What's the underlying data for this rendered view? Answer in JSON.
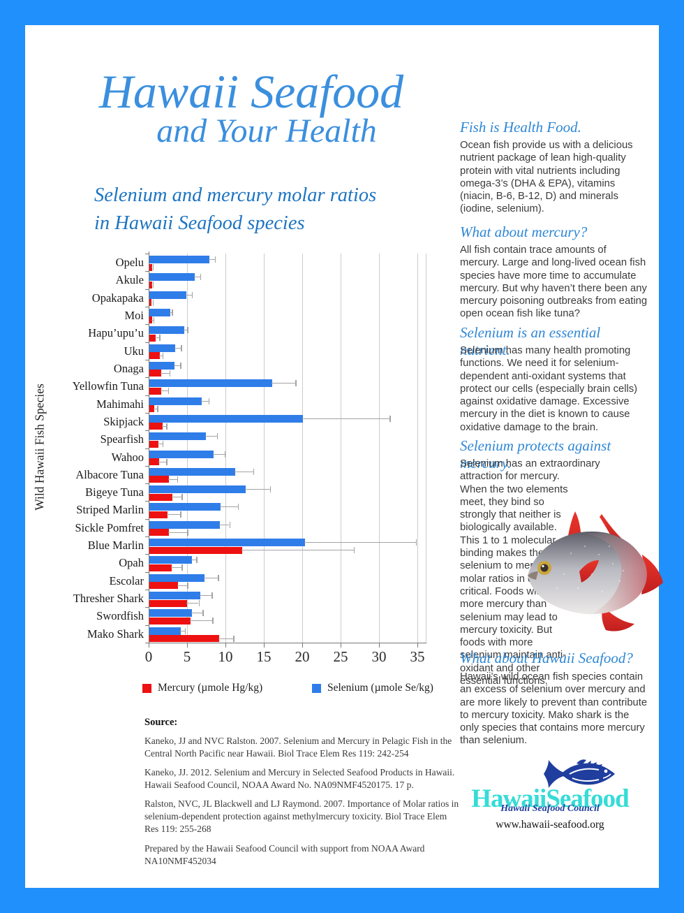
{
  "poster": {
    "title_line1": "Hawaii Seafood",
    "title_line2": "and Your Health",
    "subtitle": "Selenium and mercury molar ratios\nin Hawaii Seafood species"
  },
  "chart_data": {
    "type": "bar",
    "orientation": "horizontal",
    "ylabel": "Wild Hawaii Fish Species",
    "xlabel": "",
    "xlim": [
      0,
      36
    ],
    "x_ticks": [
      0,
      5,
      10,
      15,
      20,
      25,
      30,
      35
    ],
    "grid": true,
    "categories": [
      "Opelu",
      "Akule",
      "Opakapaka",
      "Moi",
      "Hapu’upu’u",
      "Uku",
      "Onaga",
      "Yellowfin Tuna",
      "Mahimahi",
      "Skipjack",
      "Spearfish",
      "Wahoo",
      "Albacore Tuna",
      "Bigeye Tuna",
      "Striped Marlin",
      "Sickle Pomfret",
      "Blue Marlin",
      "Opah",
      "Escolar",
      "Thresher Shark",
      "Swordfish",
      "Mako Shark"
    ],
    "series": [
      {
        "name": "Selenium (µmole Se/kg)",
        "color": "#2F7DE9",
        "values": [
          7.8,
          5.9,
          4.8,
          2.7,
          4.5,
          3.4,
          3.3,
          16.0,
          6.8,
          20.0,
          7.4,
          8.4,
          11.2,
          12.5,
          9.3,
          9.2,
          20.3,
          5.5,
          7.2,
          6.6,
          5.5,
          4.1
        ],
        "error_high": [
          8.6,
          6.7,
          5.6,
          3.0,
          5.0,
          4.2,
          4.1,
          19.1,
          7.8,
          31.4,
          8.9,
          9.9,
          13.6,
          15.8,
          11.6,
          10.5,
          34.8,
          6.2,
          9.0,
          8.2,
          7.0,
          4.7
        ]
      },
      {
        "name": "Mercury (µmole Hg/kg)",
        "color": "#EE1111",
        "values": [
          0.35,
          0.35,
          0.3,
          0.4,
          0.8,
          1.4,
          1.5,
          1.5,
          0.6,
          1.7,
          1.2,
          1.3,
          2.5,
          3.0,
          2.4,
          2.5,
          12.1,
          2.9,
          3.7,
          4.9,
          5.4,
          9.1
        ],
        "error_high": [
          0.5,
          0.5,
          0.5,
          0.6,
          1.4,
          1.8,
          2.7,
          2.5,
          1.1,
          2.3,
          1.8,
          2.3,
          3.7,
          4.3,
          4.1,
          5.0,
          26.7,
          4.3,
          5.0,
          6.5,
          8.3,
          11.0
        ]
      }
    ],
    "legend": [
      {
        "label": "Mercury (µmole Hg/kg)",
        "color": "#EE1111"
      },
      {
        "label": "Selenium (µmole Se/kg)",
        "color": "#2F7DE9"
      }
    ],
    "legend_position": "bottom"
  },
  "sections": [
    {
      "heading": "Fish is Health Food.",
      "body": "Ocean fish provide us with a delicious nutrient package of lean high-quality protein with vital nutrients including omega-3’s (DHA & EPA), vitamins (niacin, B-6, B-12, D) and minerals (iodine, selenium)."
    },
    {
      "heading": "What about mercury?",
      "body": "All fish contain trace amounts of mercury. Large and long-lived ocean fish species have more time to accumulate mercury. But why haven’t there been any mercury poisoning outbreaks from eating open ocean fish like tuna?"
    },
    {
      "heading": "Selenium is an essential nutrient.",
      "body": "Selenium has many health promoting functions. We need it for selenium-dependent anti-oxidant systems that protect our cells (especially brain cells) against oxidative damage. Excessive mercury in the diet is known to cause oxidative damage to the brain."
    },
    {
      "heading": "Selenium protects against mercury.",
      "body": "Selenium has an extraordinary attraction for mercury. When the two elements meet, they bind so strongly that neither is biologically available. This 1 to 1 molecular binding makes the selenium to mercury molar ratios in diets critical. Foods with more mercury than selenium may lead to mercury toxicity. But foods with more selenium maintain anti-oxidant and other essential functions."
    },
    {
      "heading": "What about Hawaii Seafood?",
      "body": "Hawaii’s wild ocean fish species contain an excess of selenium over mercury and are more likely to prevent than contribute to mercury toxicity. Mako shark is the only species that contains more mercury than selenium."
    }
  ],
  "source": {
    "label": "Source:",
    "references": [
      "Kaneko, JJ and NVC Ralston. 2007. Selenium and Mercury in Pelagic Fish in the Central North Pacific near Hawaii. Biol Trace Elem Res 119: 242-254",
      "Kaneko, JJ. 2012. Selenium and Mercury in Selected Seafood Products in Hawaii. Hawaii Seafood Council, NOAA Award No. NA09NMF4520175. 17 p.",
      "Ralston, NVC, JL Blackwell and LJ Raymond. 2007. Importance of Molar ratios in selenium-dependent protection against methylmercury toxicity. Biol Trace Elem Res 119: 255-268",
      "Prepared by the Hawaii Seafood Council with support from NOAA Award NA10NMF452034"
    ]
  },
  "logo": {
    "wordmark": "HawaiiSeafood",
    "tagline": "Hawaii Seafood Council",
    "url": "www.hawaii-seafood.org"
  },
  "colors": {
    "frame_blue": "#2090FC",
    "title_blue": "#3B8FDE",
    "subtitle_blue": "#1D74C2",
    "heading_blue": "#2E87D5",
    "selenium_blue": "#2F7DE9",
    "mercury_red": "#EE1111",
    "logo_cyan": "#35DCD6",
    "logo_navy": "#1F3E9E"
  }
}
